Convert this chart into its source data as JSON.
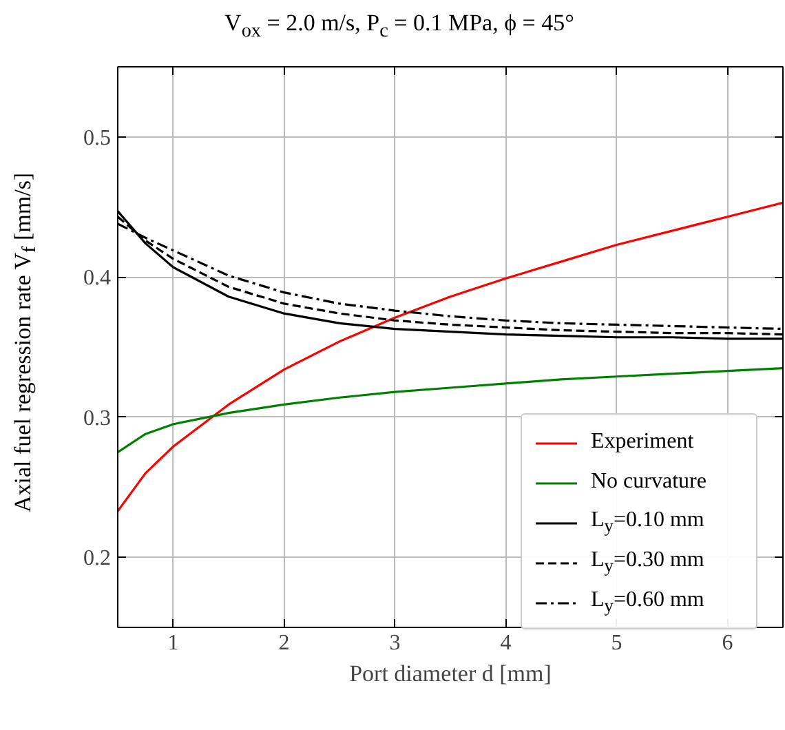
{
  "chart_data": {
    "type": "line",
    "title": "V$_{ox}$ = 2.0 m/s, P$_{c}$ = 0.1 MPa, ϕ = 45°",
    "xlabel": "Port diameter d [mm]",
    "ylabel": "Axial fuel regression rate V$_{f}$ [mm/s]",
    "x": [
      0.5,
      0.75,
      1,
      1.5,
      2,
      2.5,
      3,
      3.5,
      4,
      4.5,
      5,
      5.5,
      6,
      6.5
    ],
    "series": [
      {
        "name": "Experiment",
        "color": "#ff0000",
        "line_style": "solid",
        "values": [
          0.233,
          0.26,
          0.279,
          0.309,
          0.334,
          0.354,
          0.371,
          0.386,
          0.399,
          0.411,
          0.423,
          0.433,
          0.443,
          0.453
        ]
      },
      {
        "name": "No curvature",
        "color": "#008000",
        "line_style": "solid",
        "values": [
          0.275,
          0.288,
          0.295,
          0.303,
          0.309,
          0.314,
          0.318,
          0.321,
          0.324,
          0.327,
          0.329,
          0.331,
          0.333,
          0.335
        ]
      },
      {
        "name": "L$_{y}$=0.10 mm",
        "color": "#000000",
        "line_style": "solid",
        "values": [
          0.447,
          0.424,
          0.407,
          0.386,
          0.374,
          0.367,
          0.363,
          0.361,
          0.359,
          0.358,
          0.357,
          0.357,
          0.356,
          0.356
        ]
      },
      {
        "name": "L$_{y}$=0.30 mm",
        "color": "#000000",
        "line_style": "dashed",
        "values": [
          0.443,
          0.426,
          0.413,
          0.393,
          0.381,
          0.374,
          0.369,
          0.366,
          0.364,
          0.362,
          0.361,
          0.36,
          0.36,
          0.359
        ]
      },
      {
        "name": "L$_{y}$=0.60 mm",
        "color": "#000000",
        "line_style": "dashdot",
        "values": [
          0.438,
          0.428,
          0.419,
          0.401,
          0.389,
          0.381,
          0.376,
          0.372,
          0.369,
          0.367,
          0.366,
          0.365,
          0.364,
          0.363
        ]
      }
    ],
    "xlim": [
      0.5,
      6.5
    ],
    "ylim": [
      0.15,
      0.55
    ],
    "xticks": [
      1,
      2,
      3,
      4,
      5,
      6
    ],
    "yticks": [
      0.2,
      0.3,
      0.4,
      0.5
    ],
    "grid": true,
    "legend": "bottom right"
  }
}
